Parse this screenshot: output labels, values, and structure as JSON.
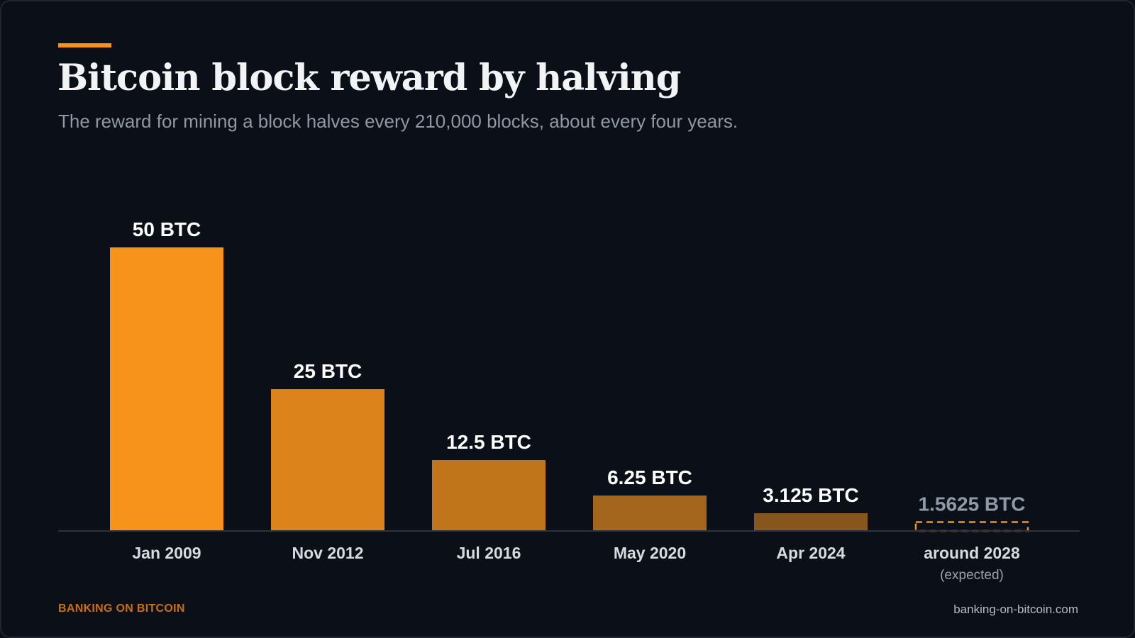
{
  "title": "Bitcoin block reward by halving",
  "subtitle": "The reward for mining a block halves every 210,000 blocks, about every four years.",
  "footer": {
    "brand": "BANKING ON BITCOIN",
    "url": "banking-on-bitcoin.com"
  },
  "colors": {
    "accent": "#f7931a",
    "projected_outline": "#f7931a",
    "projected_label": "#8e9aa8"
  },
  "chart_data": {
    "type": "bar",
    "title": "Bitcoin block reward by halving",
    "xlabel": "",
    "ylabel": "",
    "ylim": [
      0,
      50
    ],
    "grid": false,
    "categories": [
      "Jan 2009",
      "Nov 2012",
      "Jul 2016",
      "May 2020",
      "Apr 2024",
      "around 2028"
    ],
    "category_notes": [
      "",
      "",
      "",
      "",
      "",
      "(expected)"
    ],
    "values": [
      50,
      25,
      12.5,
      6.25,
      3.125,
      1.5625
    ],
    "value_labels": [
      "50 BTC",
      "25 BTC",
      "12.5 BTC",
      "6.25 BTC",
      "3.125 BTC",
      "1.5625 BTC"
    ],
    "bar_colors": [
      "#f7931a",
      "#dc841b",
      "#c0751b",
      "#a3661c",
      "#87561c",
      "none"
    ],
    "projected": [
      false,
      false,
      false,
      false,
      false,
      true
    ]
  }
}
